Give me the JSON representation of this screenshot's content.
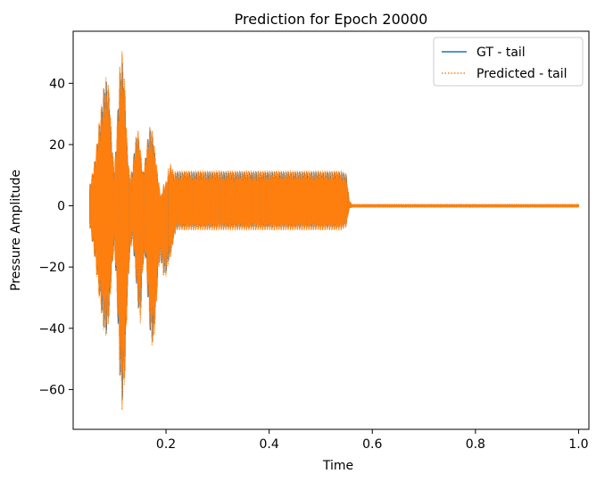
{
  "chart_data": {
    "type": "line",
    "title": "Prediction for Epoch 20000",
    "xlabel": "Time",
    "ylabel": "Pressure Amplitude",
    "xlim": [
      0.02,
      1.02
    ],
    "ylim": [
      -73,
      57
    ],
    "xticks": [
      0.2,
      0.4,
      0.6,
      0.8,
      1.0
    ],
    "xtick_labels": [
      "0.2",
      "0.4",
      "0.6",
      "0.8",
      "1.0"
    ],
    "yticks": [
      -60,
      -40,
      -20,
      0,
      20,
      40
    ],
    "ytick_labels": [
      "−60",
      "−40",
      "−20",
      "0",
      "20",
      "40"
    ],
    "grid": false,
    "legend_position": "top-right",
    "series": [
      {
        "name": "GT - tail",
        "color": "#1f77b4",
        "style": "solid",
        "envelope": {
          "x": [
            0.052,
            0.06,
            0.065,
            0.07,
            0.08,
            0.085,
            0.09,
            0.095,
            0.1,
            0.105,
            0.11,
            0.115,
            0.12,
            0.125,
            0.13,
            0.135,
            0.14,
            0.145,
            0.15,
            0.155,
            0.16,
            0.165,
            0.17,
            0.175,
            0.18,
            0.185,
            0.19,
            0.195,
            0.2,
            0.205,
            0.21,
            0.215,
            0.22,
            0.225,
            0.23,
            0.24,
            0.3,
            0.4,
            0.5,
            0.54,
            0.55,
            0.555,
            0.56,
            1.0
          ],
          "upper": [
            6,
            12,
            18,
            25,
            38,
            41,
            36,
            20,
            10,
            25,
            42,
            48,
            38,
            18,
            8,
            12,
            20,
            24,
            18,
            10,
            15,
            22,
            25,
            22,
            15,
            8,
            2,
            5,
            6,
            10,
            12,
            10,
            11,
            11,
            11,
            11,
            11,
            11,
            11,
            11,
            10,
            2,
            0.5,
            0.5
          ],
          "lower": [
            -6,
            -14,
            -20,
            -28,
            -40,
            -42,
            -35,
            -20,
            -12,
            -30,
            -52,
            -65,
            -55,
            -30,
            -15,
            -10,
            -20,
            -30,
            -38,
            -20,
            -15,
            -30,
            -42,
            -45,
            -35,
            -20,
            -17,
            -22,
            -22,
            -18,
            -15,
            -10,
            -7,
            -7,
            -7,
            -7,
            -7,
            -7,
            -7,
            -7,
            -6,
            -1,
            -0.5,
            -0.5
          ]
        }
      },
      {
        "name": "Predicted - tail",
        "color": "#ff7f0e",
        "style": "dotted",
        "envelope": {
          "x": [
            0.052,
            0.06,
            0.065,
            0.07,
            0.08,
            0.085,
            0.09,
            0.095,
            0.1,
            0.105,
            0.11,
            0.115,
            0.12,
            0.125,
            0.13,
            0.135,
            0.14,
            0.145,
            0.15,
            0.155,
            0.16,
            0.165,
            0.17,
            0.175,
            0.18,
            0.185,
            0.19,
            0.195,
            0.2,
            0.205,
            0.21,
            0.215,
            0.22,
            0.225,
            0.23,
            0.24,
            0.3,
            0.4,
            0.5,
            0.54,
            0.55,
            0.555,
            0.56,
            1.0
          ],
          "upper": [
            7,
            13,
            19,
            27,
            40,
            43,
            37,
            21,
            11,
            27,
            45,
            51,
            40,
            19,
            9,
            13,
            21,
            26,
            19,
            11,
            16,
            23,
            27,
            23,
            16,
            9,
            3,
            7,
            8,
            13,
            14,
            11,
            11.5,
            11.5,
            11.5,
            11.5,
            11.5,
            11.5,
            11.5,
            11.5,
            10.5,
            2,
            0.6,
            0.6
          ],
          "lower": [
            -7,
            -15,
            -22,
            -30,
            -42,
            -43,
            -36,
            -21,
            -13,
            -32,
            -55,
            -67,
            -57,
            -32,
            -16,
            -11,
            -21,
            -32,
            -40,
            -21,
            -16,
            -32,
            -44,
            -47,
            -37,
            -21,
            -18,
            -23,
            -23,
            -19,
            -16,
            -11,
            -8,
            -8,
            -8,
            -8,
            -8,
            -8,
            -8,
            -8,
            -7,
            -1,
            -0.6,
            -0.6
          ]
        }
      }
    ]
  }
}
